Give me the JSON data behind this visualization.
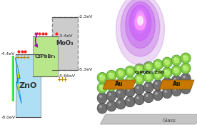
{
  "bg_color": "#ffffff",
  "zno_color": "#aedff5",
  "cspbbr_color": "#b8e68a",
  "moo3_color": "#cccccc",
  "arrow_color": "#aa00bb",
  "dot_color": "#ff2222",
  "plus_color": "#bb8800",
  "au_color": "#c8860a",
  "glass_color": "#c0c0c0",
  "ball_gray_color": "#888888",
  "ball_green_color": "#90c840",
  "purple_glow_color": "#8822cc",
  "emin": -8.8,
  "emax": -1.5,
  "zno_cbm": -4.4,
  "zno_vbm": -8.0,
  "cspbbr_cbm": -3.4,
  "cspbbr_vbm": -5.66,
  "moo3_cbm": -2.3,
  "moo3_vbm": -5.3,
  "zno_label": "ZnO",
  "cspbbr_label": "CsPbBr₃",
  "moo3_label": "MoO₃",
  "au_label": "Au",
  "glass_label": "Glass",
  "device_label": "CsPbBr₃:ZnO",
  "zno_cbm_label": "-4.4eV",
  "zno_vbm_label": "-8.0eV",
  "cspbbr_cbm_label": "-3.4eV",
  "cspbbr_vbm_label": "-5.66eV",
  "moo3_cbm_label": "-2.3eV",
  "moo3_vbm_label": "-5.3eV"
}
